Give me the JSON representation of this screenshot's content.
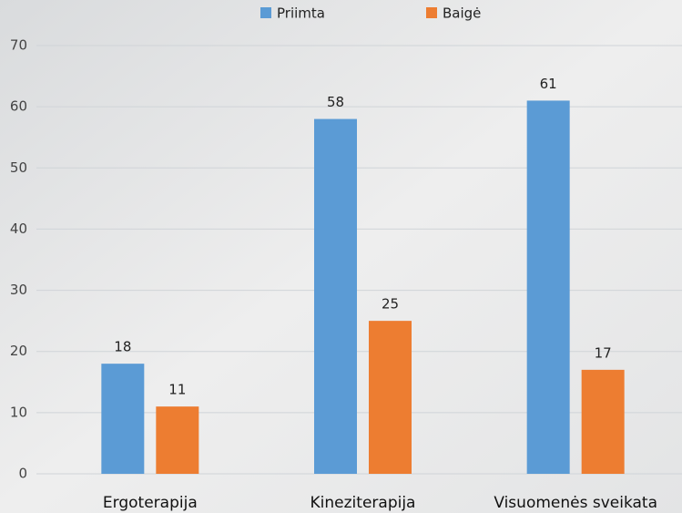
{
  "chart_data": {
    "type": "bar",
    "categories": [
      "Ergoterapija",
      "Kineziterapija",
      "Visuomenės sveikata"
    ],
    "series": [
      {
        "name": "Priimta",
        "color": "#5b9bd5",
        "values": [
          18,
          58,
          61
        ]
      },
      {
        "name": "Baigė",
        "color": "#ed7d31",
        "values": [
          11,
          25,
          17
        ]
      }
    ],
    "ylim": [
      0,
      70
    ],
    "yticks": [
      0,
      10,
      20,
      30,
      40,
      50,
      60,
      70
    ],
    "grid": true,
    "legend": "top"
  }
}
